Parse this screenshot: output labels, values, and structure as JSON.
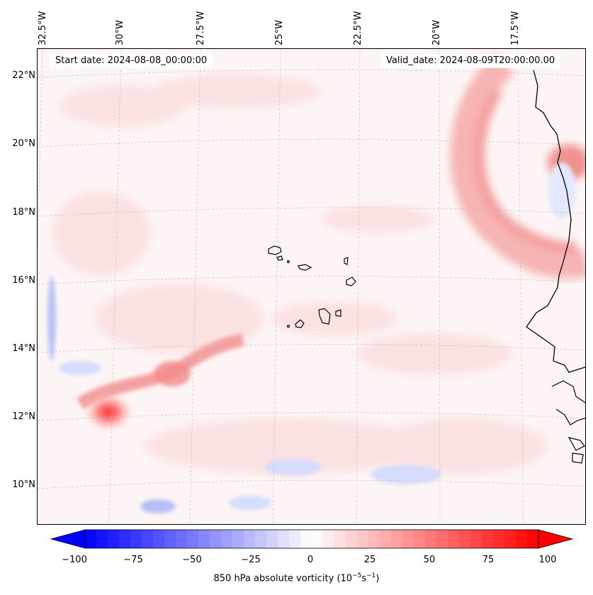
{
  "header": {
    "start_date": "Start date: 2024-08-08_00:00:00",
    "valid_date": "Valid_date: 2024-08-09T20:00:00.00"
  },
  "lon_labels": [
    "32.5°W",
    "30°W",
    "27.5°W",
    "25°W",
    "22.5°W",
    "20°W",
    "17.5°W"
  ],
  "lat_labels": [
    "22°N",
    "20°N",
    "18°N",
    "16°N",
    "14°N",
    "12°N",
    "10°N"
  ],
  "colorbar": {
    "ticks": [
      "−100",
      "−75",
      "−50",
      "−25",
      "0",
      "25",
      "50",
      "75",
      "100"
    ],
    "label": "850 hPa absolute vorticity (10",
    "label_exp1": "−5",
    "label_mid": "s",
    "label_exp2": "−1",
    "label_end": ")",
    "min": -100,
    "max": 100,
    "negative_color": "#0000ff",
    "positive_color": "#ff0000"
  },
  "colors": {
    "background": "#fdf6f6",
    "coastline": "#000000"
  }
}
